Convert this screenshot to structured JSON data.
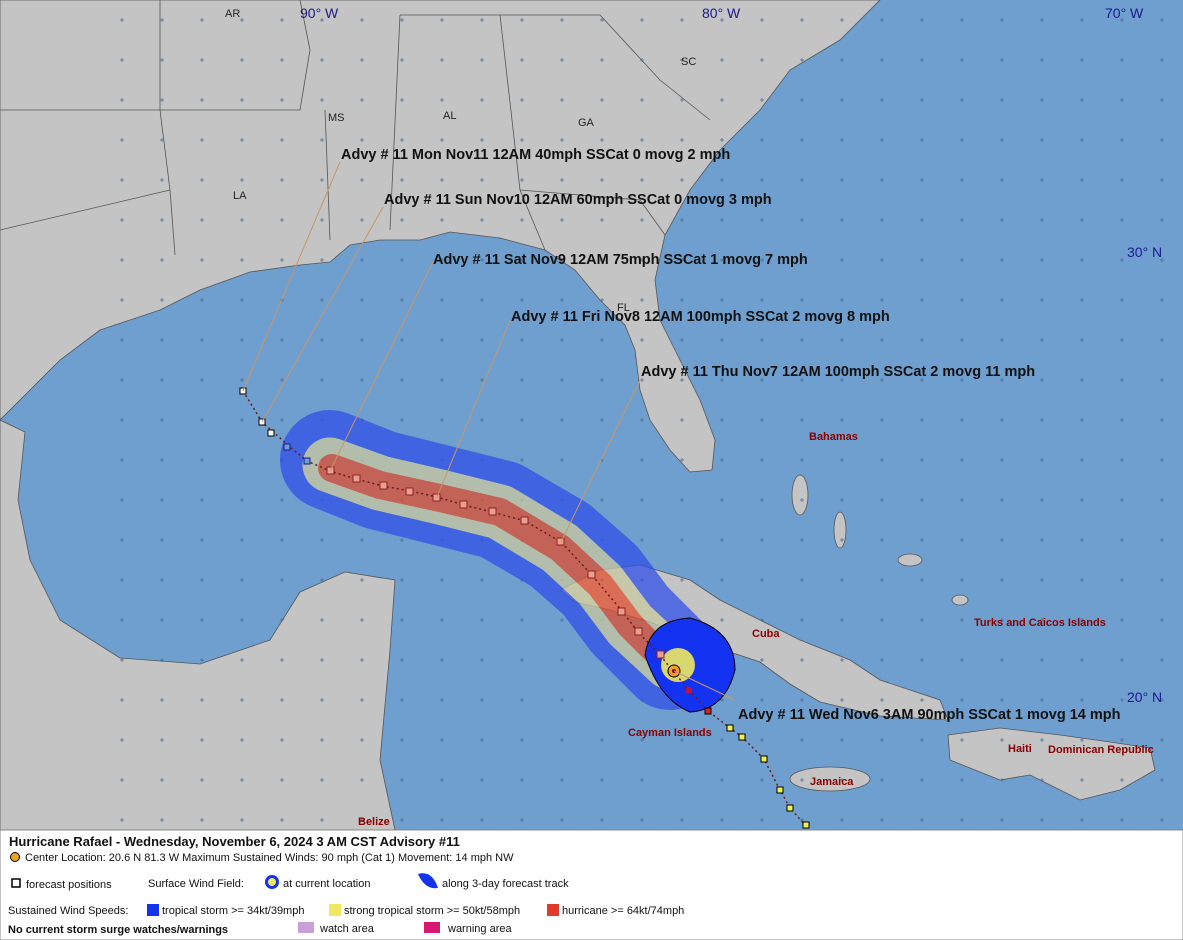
{
  "map": {
    "states": [
      "AR",
      "MS",
      "AL",
      "GA",
      "SC",
      "LA",
      "FL"
    ],
    "longitudes": [
      "90° W",
      "80° W",
      "70° W"
    ],
    "latitudes": [
      "30° N",
      "20° N"
    ],
    "places": [
      "Bahamas",
      "Cuba",
      "Turks and Caicos Islands",
      "Haiti",
      "Dominican Republic",
      "Jamaica",
      "Cayman Islands",
      "Belize"
    ],
    "advisories": [
      "Advy # 11 Mon Nov11 12AM  40mph SSCat 0 movg 2 mph",
      "Advy # 11 Sun Nov10 12AM  60mph SSCat 0 movg 3 mph",
      "Advy # 11 Sat Nov9 12AM  75mph SSCat 1 movg 7 mph",
      "Advy # 11 Fri Nov8 12AM  100mph SSCat 2 movg 8 mph",
      "Advy # 11 Thu Nov7 12AM  100mph SSCat 2 movg 11 mph",
      "Advy # 11 Wed Nov6 3AM  90mph SSCat 1 movg 14 mph"
    ]
  },
  "legend": {
    "title": "Hurricane Rafael  -  Wednesday, November 6, 2024  3 AM CST   Advisory #11",
    "center": "Center Location: 20.6 N  81.3 W   Maximum Sustained Winds: 90 mph (Cat 1) Movement: 14 mph NW",
    "forecast_positions": "forecast positions",
    "surface_wind_field": "Surface Wind Field:",
    "at_current": "at current location",
    "along_track": "along 3-day forecast track",
    "sustained": "Sustained Wind Speeds:",
    "tropical_storm": "tropical storm >= 34kt/39mph",
    "strong_tropical_storm": "strong tropical storm >= 50kt/58mph",
    "hurricane": "hurricane >= 64kt/74mph",
    "surge": "No current storm surge watches/warnings",
    "watch": "watch area",
    "warning": "warning area"
  }
}
